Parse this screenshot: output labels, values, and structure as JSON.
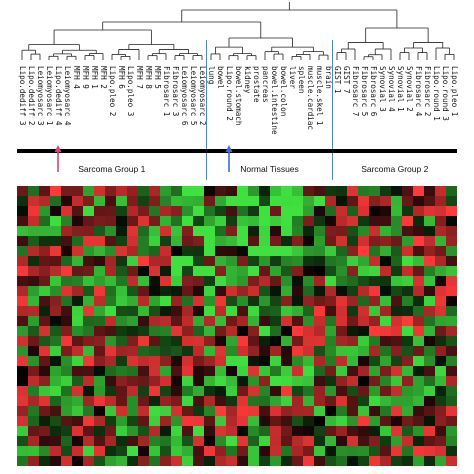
{
  "samples": [
    {
      "label": "Lipo.dediff 3"
    },
    {
      "label": "Lipo.dediff 2"
    },
    {
      "label": "Leiomyosarc 3"
    },
    {
      "label": "Leiomyosarc 1"
    },
    {
      "label": "Lipo.dediff 4"
    },
    {
      "label": "Leiomyosarc 4"
    },
    {
      "label": "MFH 4"
    },
    {
      "label": "MFH 9"
    },
    {
      "label": "MFH 1"
    },
    {
      "label": "MFH 2"
    },
    {
      "label": "Lipo.pleo 2"
    },
    {
      "label": "MFH 6"
    },
    {
      "label": "Lipo.pleo 3"
    },
    {
      "label": "MFH 7"
    },
    {
      "label": "MFH 8"
    },
    {
      "label": "MFH 5"
    },
    {
      "label": "Fibrosarc 1"
    },
    {
      "label": "Fibrosarc 3"
    },
    {
      "label": "Leiomyosarc 6"
    },
    {
      "label": "Leiomyosarc 5"
    },
    {
      "label": "Leiomyosarc 2"
    },
    {
      "label": "lung"
    },
    {
      "label": "bowel"
    },
    {
      "label": "Lipo.round 2"
    },
    {
      "label": "bowel.stomach"
    },
    {
      "label": "kidney"
    },
    {
      "label": "prostate"
    },
    {
      "label": "pancreas"
    },
    {
      "label": "bowel.intestine"
    },
    {
      "label": "bowel.colon"
    },
    {
      "label": "liver"
    },
    {
      "label": "spleen"
    },
    {
      "label": "muscle.cardiac"
    },
    {
      "label": "muscle.skel 1"
    },
    {
      "label": "brain"
    },
    {
      "label": "GIST 1"
    },
    {
      "label": "GIST 7"
    },
    {
      "label": "Fibrosarc 7"
    },
    {
      "label": "Fibrosarc 5"
    },
    {
      "label": "Fibrosarc 6"
    },
    {
      "label": "Synovial 3"
    },
    {
      "label": "Synovial 4"
    },
    {
      "label": "Synovial 1"
    },
    {
      "label": "Synovial 2"
    },
    {
      "label": "Fibrosarc 4"
    },
    {
      "label": "Fibrosarc 2"
    },
    {
      "label": "Lipo.round 1"
    },
    {
      "label": "Lipo.round 3"
    },
    {
      "label": "Lipo.pleo 1"
    }
  ],
  "groups": [
    {
      "label": "Sarcoma Group 1"
    },
    {
      "label": "Normal Tissues"
    },
    {
      "label": "Sarcoma Group 2"
    }
  ],
  "arrows": [
    {
      "name": "pink-arrow",
      "color": "#e0407a",
      "points_to": "Lipo.dediff 4"
    },
    {
      "name": "blue-arrow",
      "color": "#3b6fd6",
      "points_to": "Lipo.round 2"
    }
  ],
  "colors": {
    "up": "#ff3a3a",
    "down": "#40e040",
    "neutral": "#000000",
    "dendrogram": "#222222",
    "divider": "#4a86d4",
    "group_bar": "#000000"
  },
  "heatmap": {
    "rows": 28,
    "cols": 40,
    "color_scale": "red-black-green"
  }
}
